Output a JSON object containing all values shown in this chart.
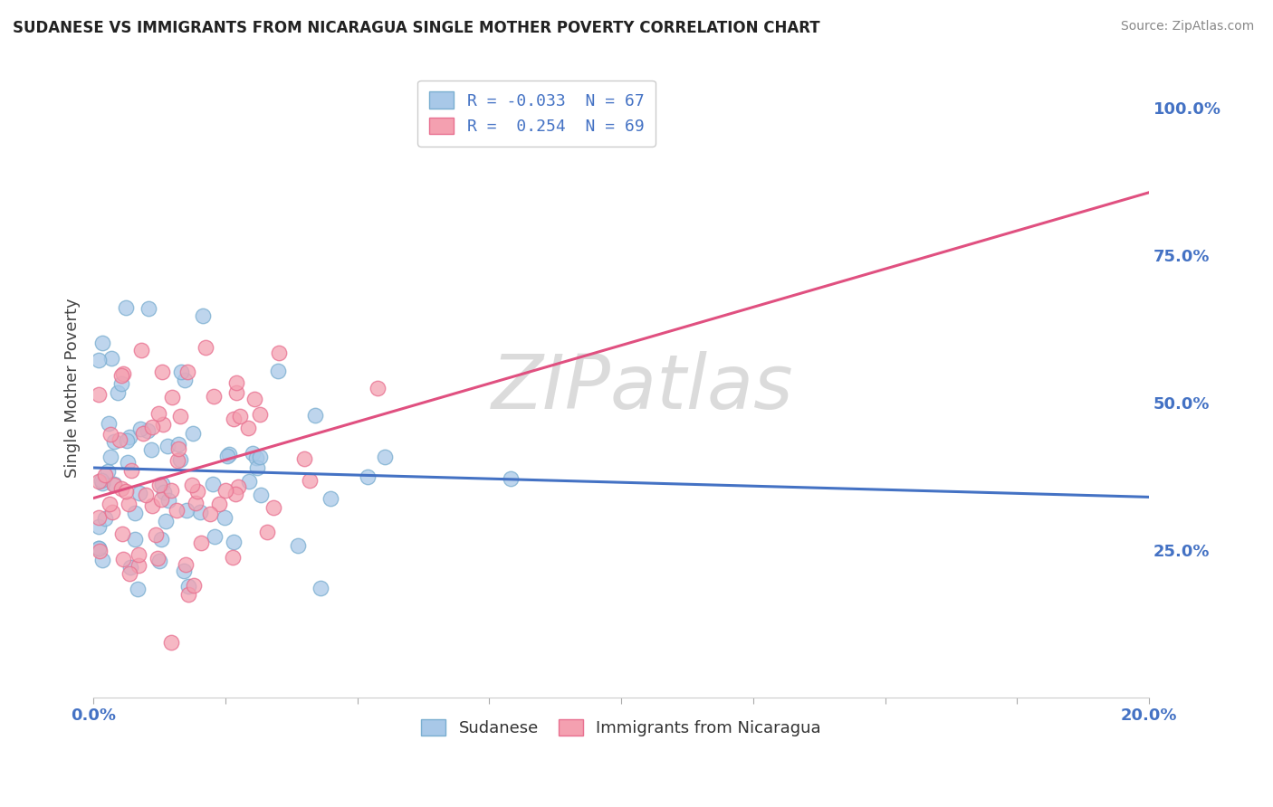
{
  "title": "SUDANESE VS IMMIGRANTS FROM NICARAGUA SINGLE MOTHER POVERTY CORRELATION CHART",
  "source": "Source: ZipAtlas.com",
  "ylabel": "Single Mother Poverty",
  "xlim": [
    0.0,
    0.2
  ],
  "ylim": [
    0.0,
    1.05
  ],
  "xticks": [
    0.0,
    0.025,
    0.05,
    0.075,
    0.1,
    0.125,
    0.15,
    0.175,
    0.2
  ],
  "xticklabels": [
    "0.0%",
    "",
    "",
    "",
    "",
    "",
    "",
    "",
    "20.0%"
  ],
  "ytick_positions": [
    0.25,
    0.5,
    0.75,
    1.0
  ],
  "ytick_labels": [
    "25.0%",
    "50.0%",
    "75.0%",
    "100.0%"
  ],
  "series1_name": "Sudanese",
  "series2_name": "Immigrants from Nicaragua",
  "series1_color": "#a8c8e8",
  "series2_color": "#f4a0b0",
  "series1_edge_color": "#7aaed0",
  "series2_edge_color": "#e87090",
  "series1_line_color": "#4472c4",
  "series2_line_color": "#e05080",
  "series1_R": -0.033,
  "series1_N": 67,
  "series2_R": 0.254,
  "series2_N": 69,
  "background_color": "#ffffff",
  "grid_color": "#cccccc",
  "legend_R1": "R = -0.033",
  "legend_N1": "N = 67",
  "legend_R2": "R =  0.254",
  "legend_N2": "N = 69",
  "watermark_text": "ZIPatlas",
  "dot_size": 140,
  "line_width": 2.2
}
